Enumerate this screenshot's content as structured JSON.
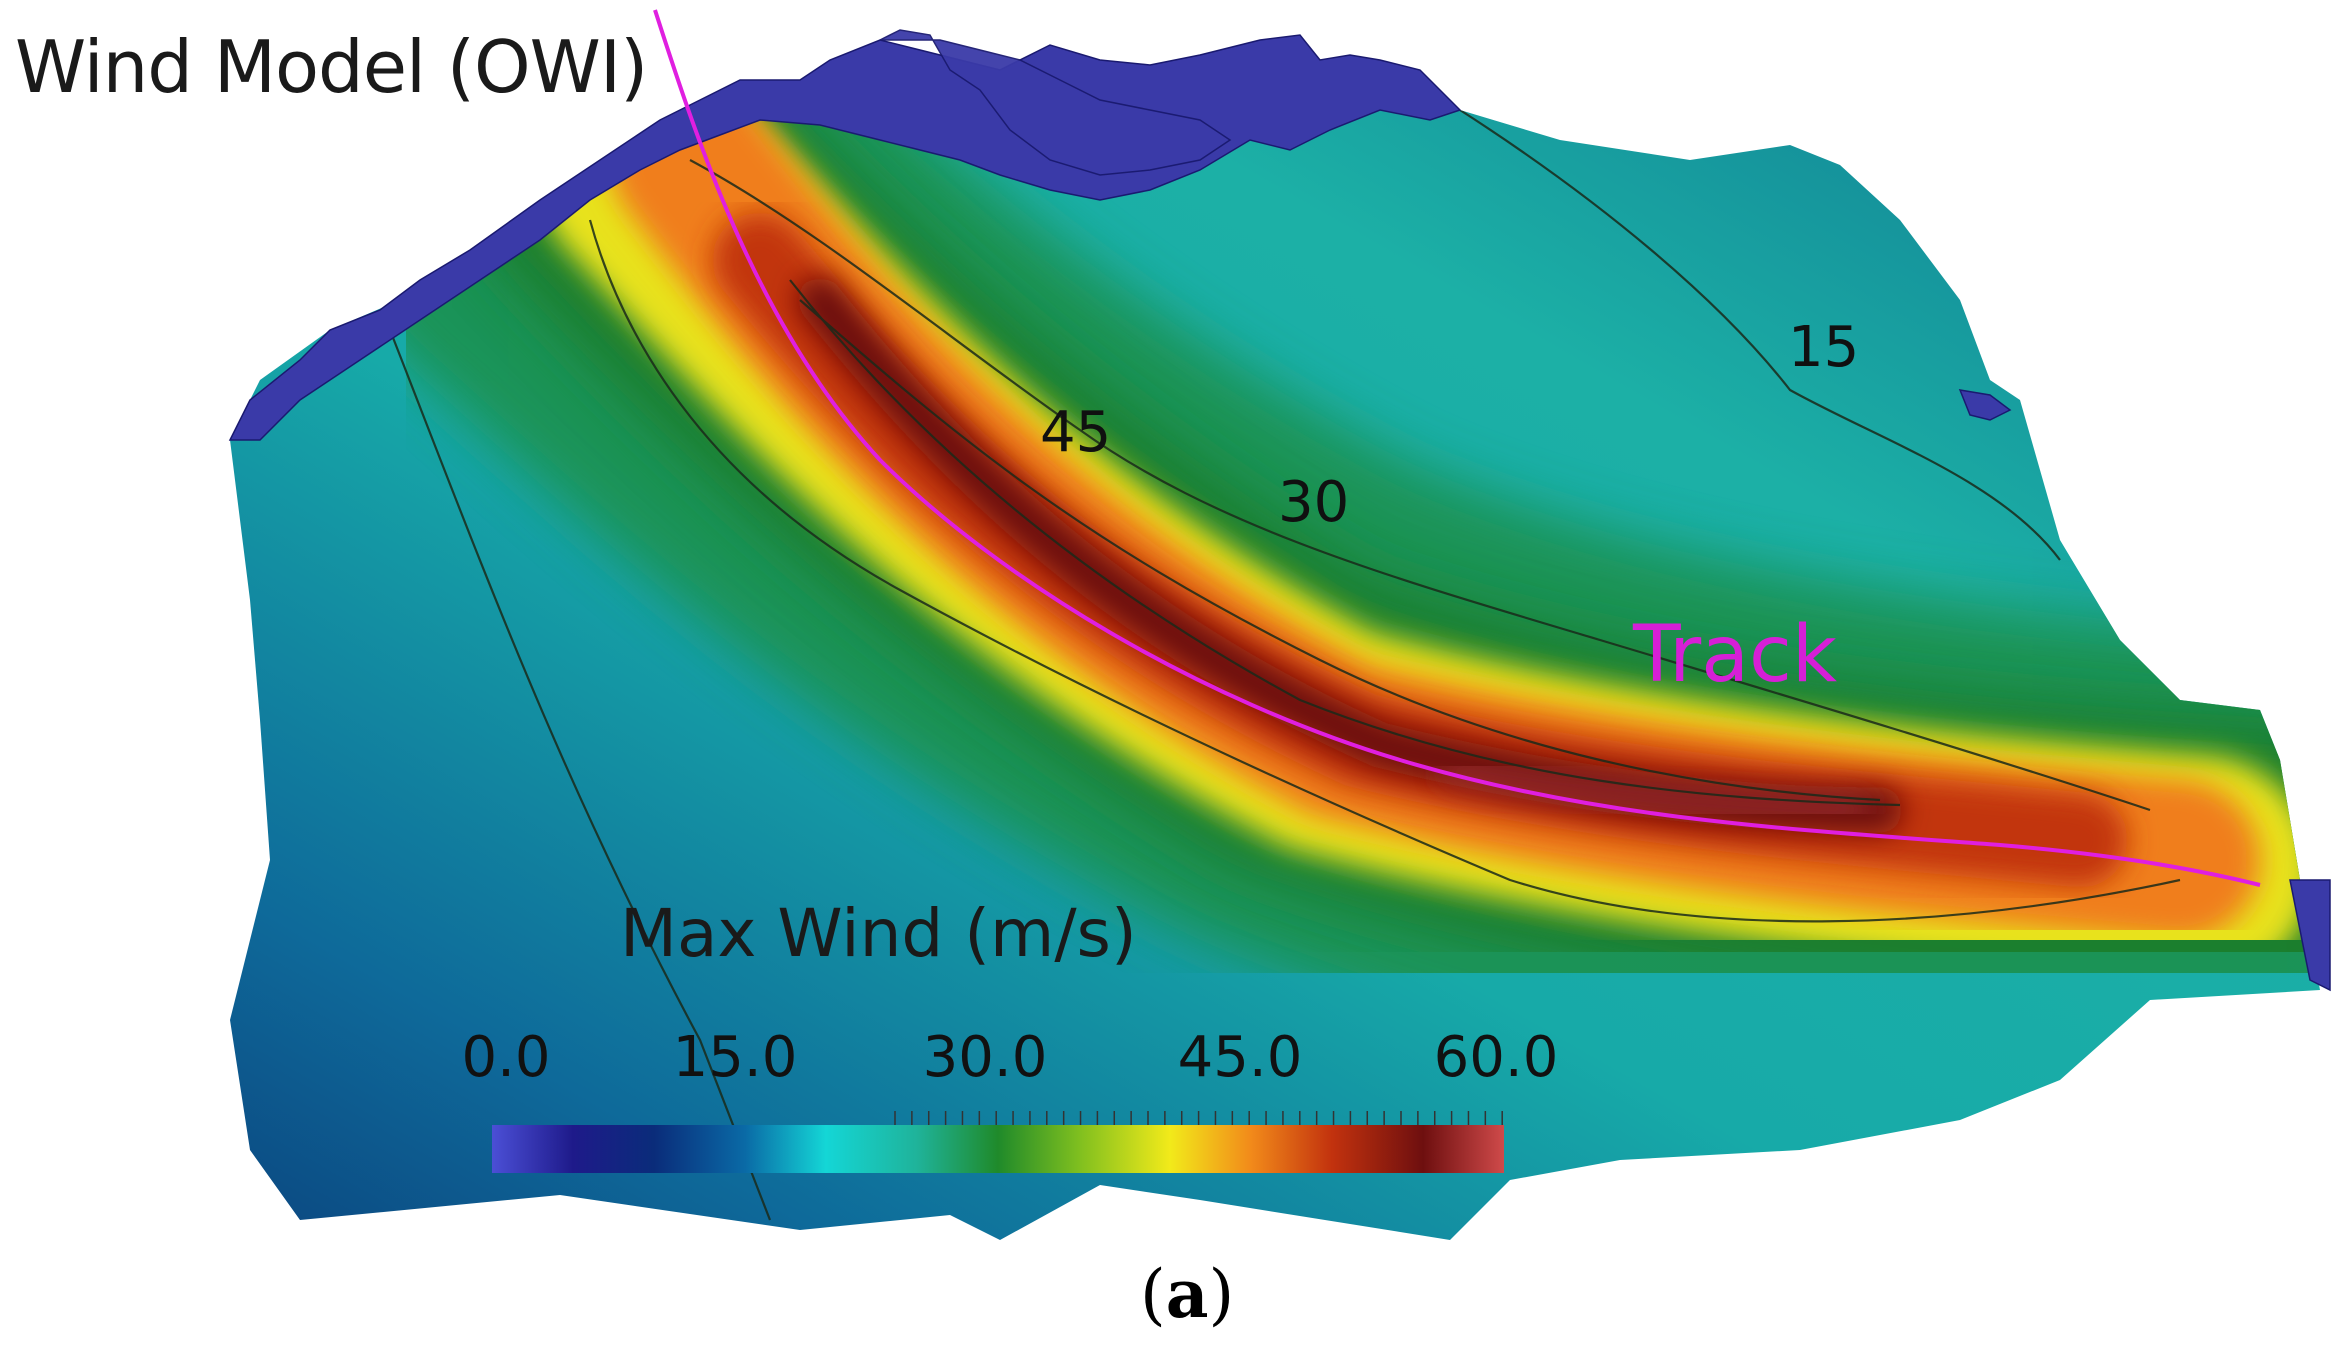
{
  "figure": {
    "title": "Wind Model (OWI)",
    "caption_open": "(",
    "caption_letter": "a",
    "caption_close": ")"
  },
  "legend": {
    "title": "Max Wind  (m/s)",
    "ticks": [
      "0.0",
      "15.0",
      "30.0",
      "45.0",
      "60.0"
    ],
    "range": [
      0,
      60
    ],
    "colors": [
      "#4b4fd6",
      "#1e1a8a",
      "#0a2c7a",
      "#0a6aa6",
      "#14d6d6",
      "#1fb39a",
      "#1f8a2a",
      "#7fbf1f",
      "#f2ea1a",
      "#f28a1a",
      "#c2320e",
      "#6e0f0f",
      "#cf4a4a"
    ]
  },
  "contours": {
    "labels": [
      "45",
      "30",
      "15"
    ],
    "line_color": "#1a2a1a"
  },
  "track": {
    "label": "Track",
    "color": "#e01fe0"
  },
  "colors": {
    "background": "#ffffff",
    "land": "#3a3aa8",
    "ocean_base": "#1aaaa0"
  }
}
